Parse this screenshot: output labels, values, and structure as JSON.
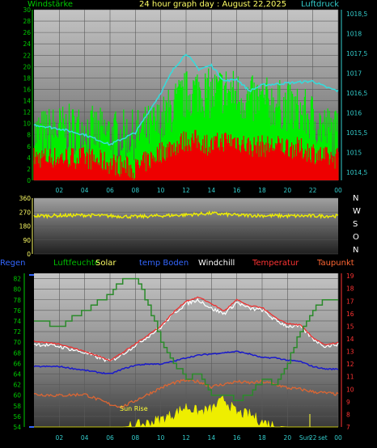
{
  "header": {
    "left_title": "Windstärke",
    "center_title": "24 hour graph day : August 22,2025",
    "right_title": "Luftdruck"
  },
  "colors": {
    "wind_axis": "#00cc00",
    "pressure_axis": "#33cccc",
    "wind_series": "#00ee00",
    "gust_series": "#ee0000",
    "pressure_series": "#33dddd",
    "direction_series": "#eeee00",
    "humidity": "#2a8a2a",
    "solar": "#eeee00",
    "soil_temp": "#1a1acc",
    "windchill": "#ffffff",
    "temperature": "#ee3333",
    "dewpoint": "#dd6633",
    "legend_regen": "#3366ff",
    "legend_luftfeuchte": "#00bb00",
    "legend_solar": "#ffff66",
    "legend_temp_boden": "#3366ff",
    "legend_windchill": "#ffffff",
    "legend_temperatur": "#ff3333",
    "legend_taupunkt": "#ff6633"
  },
  "time_ticks": [
    "02",
    "04",
    "06",
    "08",
    "10",
    "12",
    "14",
    "16",
    "18",
    "20",
    "22",
    "00"
  ],
  "bottom_time_ticks": [
    "02",
    "04",
    "06",
    "08",
    "10",
    "12",
    "14",
    "16",
    "18",
    "20",
    "Sun",
    "22",
    "set",
    "00"
  ],
  "compass": [
    "N",
    "W",
    "S",
    "O",
    "N"
  ],
  "legend": {
    "regen": "Regen",
    "luftfeuchte": "Luftfeuchte",
    "solar": "Solar",
    "temp_boden": "temp Boden",
    "windchill": "Windchill",
    "temperatur": "Temperatur",
    "taupunkt": "Taupunkt"
  },
  "annotations": {
    "sun_rise": "Sun Rise"
  },
  "chart_data": [
    {
      "type": "line",
      "id": "wind_pressure",
      "title": "24 hour graph day : August 22,2025",
      "ylabel_left": "Windstärke",
      "ylabel_right": "Luftdruck",
      "ylim_left": [
        0,
        30
      ],
      "yticks_left": [
        "0",
        "2",
        "4",
        "6",
        "8",
        "10",
        "12",
        "14",
        "16",
        "18",
        "20",
        "22",
        "24",
        "26",
        "28",
        "30"
      ],
      "ylim_right": [
        1014.3,
        1018.6
      ],
      "yticks_right": [
        "1014,5",
        "1015",
        "1015,5",
        "1016",
        "1016,5",
        "1017",
        "1017,5",
        "1018",
        "1018,5"
      ],
      "x": [
        0,
        2,
        4,
        6,
        8,
        10,
        11,
        12,
        13,
        14,
        15,
        16,
        17,
        18,
        20,
        22,
        23,
        24
      ],
      "series": [
        {
          "axis": "left",
          "values": [
            8,
            9,
            9,
            8,
            8,
            10,
            13,
            15,
            16,
            15,
            16,
            15,
            14,
            14,
            13,
            11,
            9,
            8
          ]
        },
        {
          "axis": "left",
          "values": [
            4,
            4,
            4,
            3,
            2,
            5,
            6,
            7,
            7,
            6,
            7,
            7,
            6,
            6,
            6,
            5,
            4,
            4
          ]
        },
        {
          "axis": "right",
          "values": [
            1015.7,
            1015.6,
            1015.45,
            1015.2,
            1015.5,
            1016.5,
            1017.1,
            1017.5,
            1017.1,
            1017.2,
            1016.8,
            1016.85,
            1016.55,
            1016.7,
            1016.75,
            1016.8,
            1016.65,
            1016.55
          ]
        }
      ],
      "grid": true
    },
    {
      "type": "line",
      "id": "wind_direction",
      "ylim": [
        0,
        360
      ],
      "yticks": [
        "0",
        "90",
        "180",
        "270",
        "360"
      ],
      "x": [
        0,
        4,
        8,
        12,
        14,
        16,
        20,
        24
      ],
      "series": [
        {
          "values": [
            245,
            250,
            240,
            252,
            262,
            250,
            245,
            245
          ]
        }
      ],
      "grid": true
    },
    {
      "type": "line",
      "id": "climate",
      "ylim_left": [
        54,
        83
      ],
      "yticks_left": [
        "54",
        "56",
        "58",
        "60",
        "62",
        "64",
        "66",
        "68",
        "70",
        "72",
        "74",
        "76",
        "78",
        "80",
        "82"
      ],
      "ylim_right": [
        7,
        19.2
      ],
      "yticks_right": [
        "7",
        "8",
        "9",
        "10",
        "11",
        "12",
        "13",
        "14",
        "15",
        "16",
        "17",
        "18",
        "19"
      ],
      "x": [
        0,
        2,
        4,
        6,
        7,
        8,
        9,
        10,
        11,
        12,
        13,
        14,
        15,
        16,
        17,
        18,
        19,
        20,
        21,
        22,
        23,
        24
      ],
      "series": [
        {
          "axis": "left",
          "values": [
            74,
            73,
            76,
            79,
            82,
            82,
            77,
            70,
            66,
            63,
            64,
            60,
            60,
            59,
            60,
            63,
            62,
            66,
            72,
            76,
            78,
            78
          ]
        },
        {
          "axis": "right",
          "values": [
            13.8,
            13.6,
            13.0,
            12.3,
            12.9,
            13.6,
            14.3,
            15.0,
            16.1,
            17.0,
            17.3,
            16.8,
            16.2,
            17.1,
            16.6,
            16.5,
            15.7,
            15.2,
            15.1,
            14.1,
            13.5,
            13.7
          ]
        },
        {
          "axis": "right",
          "values": [
            13.6,
            13.4,
            12.9,
            12.2,
            12.8,
            13.5,
            14.2,
            14.9,
            16.0,
            16.8,
            17.1,
            16.4,
            16.0,
            16.9,
            16.4,
            16.3,
            15.5,
            15.0,
            15.0,
            14.0,
            13.4,
            13.6
          ]
        },
        {
          "axis": "right",
          "values": [
            11.8,
            11.8,
            11.5,
            11.2,
            11.6,
            11.9,
            12.0,
            12.0,
            12.2,
            12.5,
            12.7,
            12.8,
            12.9,
            13.0,
            12.8,
            12.5,
            12.5,
            12.3,
            12.2,
            11.8,
            11.6,
            11.6
          ]
        },
        {
          "axis": "right",
          "values": [
            9.6,
            9.5,
            9.6,
            8.8,
            8.6,
            9.1,
            9.6,
            10.1,
            10.5,
            10.7,
            10.6,
            10.2,
            10.4,
            10.6,
            10.5,
            10.6,
            10.4,
            10.1,
            10.0,
            9.8,
            9.7,
            9.6
          ]
        },
        {
          "axis": "right",
          "values": [
            7,
            7,
            7,
            7,
            7,
            7.1,
            7.3,
            7.6,
            8.0,
            8.6,
            8.2,
            8.4,
            9.2,
            8.1,
            8.0,
            7.4,
            7.1,
            7,
            7,
            7,
            7,
            7
          ]
        }
      ],
      "grid": true
    }
  ]
}
